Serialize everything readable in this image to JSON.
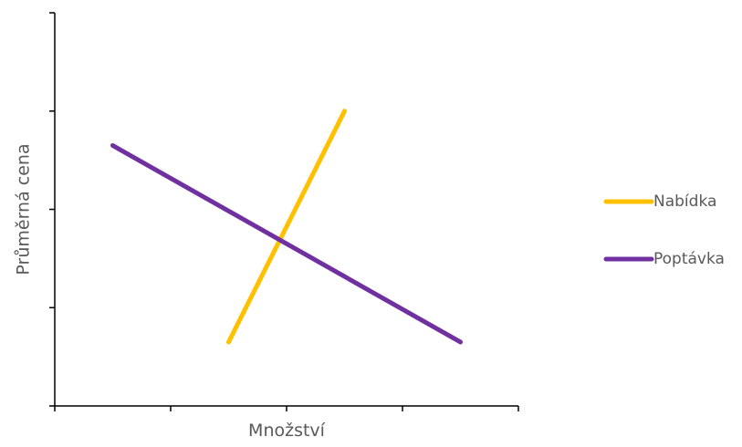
{
  "chart_data": {
    "type": "line",
    "xlabel": "Množství",
    "ylabel": "Průměrná cena",
    "xlim": [
      0,
      4
    ],
    "ylim": [
      0,
      4
    ],
    "x_ticks": [
      0,
      1,
      2,
      3,
      4
    ],
    "y_ticks": [
      0,
      1,
      2,
      3,
      4
    ],
    "tick_labels_shown": false,
    "grid": false,
    "legend_position": "right",
    "series": [
      {
        "name": "Nabídka",
        "color": "#FFC000",
        "points": [
          [
            1.5,
            0.65
          ],
          [
            2.5,
            3.0
          ]
        ]
      },
      {
        "name": "Poptávka",
        "color": "#7030A0",
        "points": [
          [
            0.5,
            2.65
          ],
          [
            3.5,
            0.65
          ]
        ]
      }
    ]
  }
}
